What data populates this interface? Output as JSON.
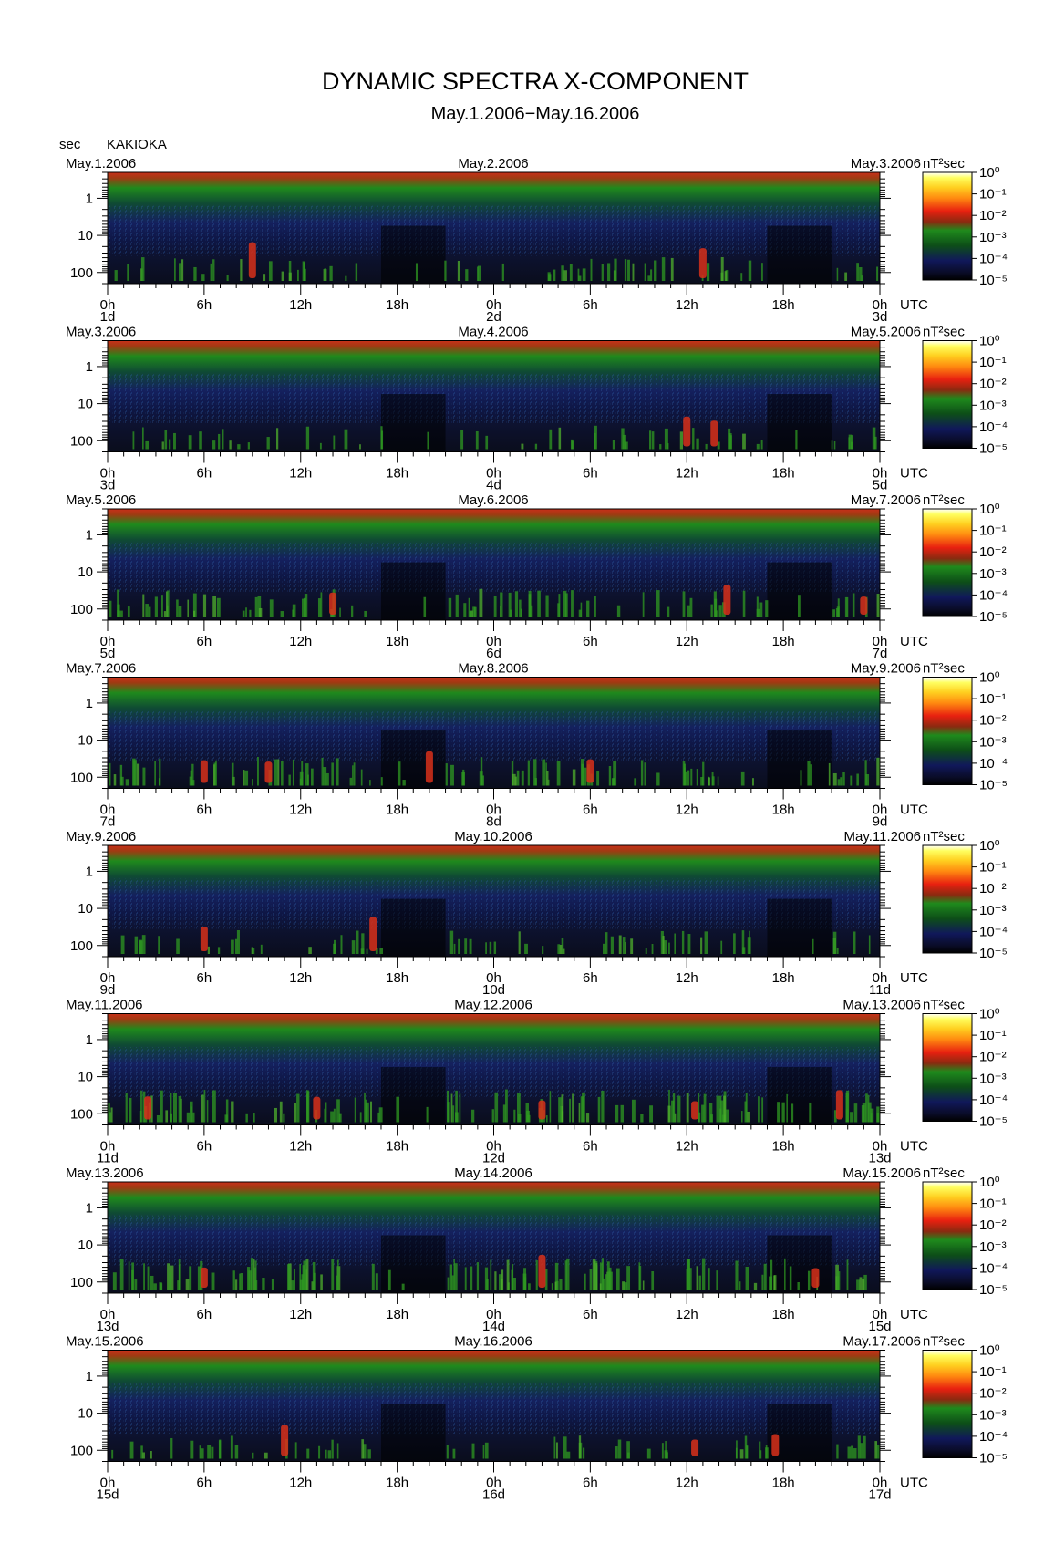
{
  "chart_data": {
    "type": "heatmap",
    "title": "DYNAMIC SPECTRA X-COMPONENT",
    "subtitle": "May.1.2006−May.16.2006",
    "ylabel": "sec",
    "station": "KAKIOKA",
    "xunit": "UTC",
    "colorbar_label": "nT²sec",
    "colorbar_ticks": [
      "10⁰",
      "10⁻¹",
      "10⁻²",
      "10⁻³",
      "10⁻⁴",
      "10⁻⁵"
    ],
    "colorbar_range": [
      1e-05,
      1
    ],
    "y_ticks": [
      "1",
      "10",
      "100"
    ],
    "y_range_sec": [
      0.2,
      200
    ],
    "x_ticks": [
      "0h",
      "6h",
      "12h",
      "18h",
      "0h",
      "6h",
      "12h",
      "18h",
      "0h"
    ],
    "colors": {
      "yellow": "#ffff40",
      "red": "#e02818",
      "green": "#1a8a1a",
      "dark_green": "#0a4a14",
      "blue": "#10185a",
      "black": "#05050a"
    },
    "panels": [
      {
        "start_date": "May.1.2006",
        "mid_date": "May.2.2006",
        "end_date": "May.3.2006",
        "day_labels": [
          "1d",
          "2d",
          "3d"
        ],
        "activity": "low",
        "pc_events_hours": [
          9,
          37
        ]
      },
      {
        "start_date": "May.3.2006",
        "mid_date": "May.4.2006",
        "end_date": "May.5.2006",
        "day_labels": [
          "3d",
          "4d",
          "5d"
        ],
        "activity": "low",
        "pc_events_hours": [
          36,
          37.7
        ]
      },
      {
        "start_date": "May.5.2006",
        "mid_date": "May.6.2006",
        "end_date": "May.7.2006",
        "day_labels": [
          "5d",
          "6d",
          "7d"
        ],
        "activity": "moderate",
        "pc_events_hours": [
          14,
          38.5,
          47
        ]
      },
      {
        "start_date": "May.7.2006",
        "mid_date": "May.8.2006",
        "end_date": "May.9.2006",
        "day_labels": [
          "7d",
          "8d",
          "9d"
        ],
        "activity": "moderate",
        "pc_events_hours": [
          6,
          10,
          20,
          30
        ]
      },
      {
        "start_date": "May.9.2006",
        "mid_date": "May.10.2006",
        "end_date": "May.11.2006",
        "day_labels": [
          "9d",
          "10d",
          "11d"
        ],
        "activity": "low",
        "pc_events_hours": [
          6,
          16.5
        ]
      },
      {
        "start_date": "May.11.2006",
        "mid_date": "May.12.2006",
        "end_date": "May.13.2006",
        "day_labels": [
          "11d",
          "12d",
          "13d"
        ],
        "activity": "high",
        "pc_events_hours": [
          2.5,
          13,
          27,
          36.5,
          45.5
        ]
      },
      {
        "start_date": "May.13.2006",
        "mid_date": "May.14.2006",
        "end_date": "May.15.2006",
        "day_labels": [
          "13d",
          "14d",
          "15d"
        ],
        "activity": "high",
        "pc_events_hours": [
          6,
          27,
          44
        ]
      },
      {
        "start_date": "May.15.2006",
        "mid_date": "May.16.2006",
        "end_date": "May.17.2006",
        "day_labels": [
          "15d",
          "16d",
          "17d"
        ],
        "activity": "low",
        "pc_events_hours": [
          11,
          36.5,
          41.5
        ]
      }
    ]
  }
}
